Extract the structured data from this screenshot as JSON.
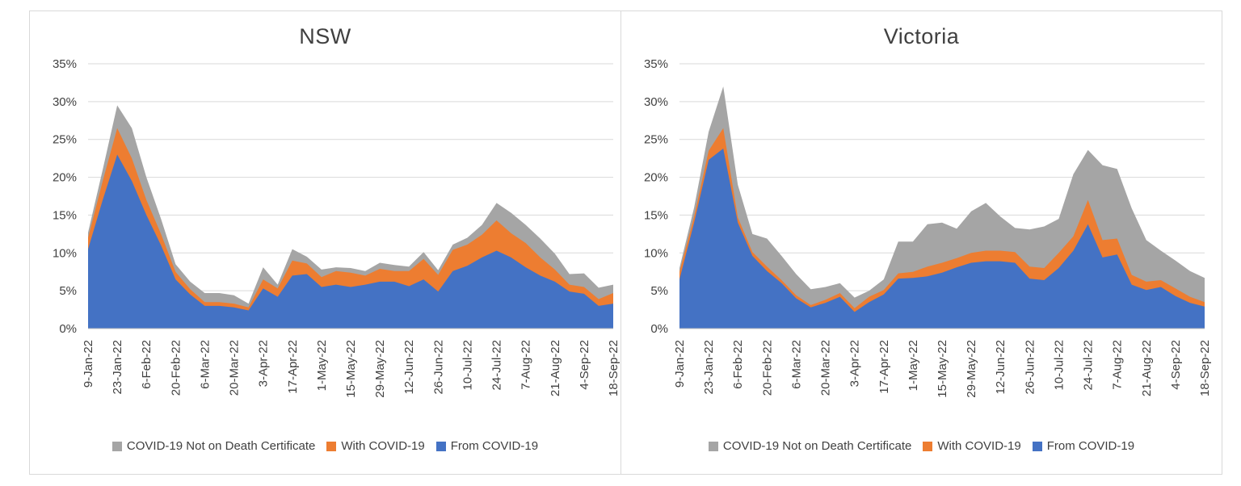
{
  "figure": {
    "background_color": "#ffffff",
    "panel_border_color": "#d9d9d9",
    "gridline_color": "#d9d9d9",
    "axis_line_color": "#c0c0c0",
    "text_color": "#404040"
  },
  "chart_data": [
    {
      "type": "area",
      "stacked": true,
      "title": "NSW",
      "grid": true,
      "legend_position": "bottom",
      "ylim": [
        0,
        35
      ],
      "y_ticks": [
        "0%",
        "5%",
        "10%",
        "15%",
        "20%",
        "25%",
        "30%",
        "35%"
      ],
      "x": [
        "9-Jan-22",
        "16-Jan-22",
        "23-Jan-22",
        "30-Jan-22",
        "6-Feb-22",
        "13-Feb-22",
        "20-Feb-22",
        "27-Feb-22",
        "6-Mar-22",
        "13-Mar-22",
        "20-Mar-22",
        "27-Mar-22",
        "3-Apr-22",
        "10-Apr-22",
        "17-Apr-22",
        "24-Apr-22",
        "1-May-22",
        "8-May-22",
        "15-May-22",
        "22-May-22",
        "29-May-22",
        "5-Jun-22",
        "12-Jun-22",
        "19-Jun-22",
        "26-Jun-22",
        "3-Jul-22",
        "10-Jul-22",
        "17-Jul-22",
        "24-Jul-22",
        "31-Jul-22",
        "7-Aug-22",
        "14-Aug-22",
        "21-Aug-22",
        "28-Aug-22",
        "4-Sep-22",
        "11-Sep-22",
        "18-Sep-22"
      ],
      "x_tick_labels": [
        "9-Jan-22",
        "23-Jan-22",
        "6-Feb-22",
        "20-Feb-22",
        "6-Mar-22",
        "20-Mar-22",
        "3-Apr-22",
        "17-Apr-22",
        "1-May-22",
        "15-May-22",
        "29-May-22",
        "12-Jun-22",
        "26-Jun-22",
        "10-Jul-22",
        "24-Jul-22",
        "7-Aug-22",
        "21-Aug-22",
        "4-Sep-22",
        "18-Sep-22"
      ],
      "x_tick_every": 2,
      "unit": "percent",
      "series": [
        {
          "name": "From COVID-19",
          "color": "#4472C4",
          "values": [
            10.5,
            17,
            23,
            19.5,
            15,
            11,
            6.5,
            4.5,
            3,
            3,
            2.8,
            2.4,
            5.3,
            4.2,
            7,
            7.2,
            5.5,
            5.8,
            5.5,
            5.8,
            6.2,
            6.2,
            5.6,
            6.5,
            4.9,
            7.6,
            8.3,
            9.4,
            10.3,
            9.4,
            8.1,
            7,
            6.2,
            4.9,
            4.6,
            3,
            3.3
          ]
        },
        {
          "name": "With COVID-19",
          "color": "#ED7D31",
          "values": [
            1.5,
            2.5,
            3.5,
            3,
            2,
            1.5,
            1,
            0.7,
            0.5,
            0.5,
            0.5,
            0.4,
            1.2,
            1.1,
            2,
            1.4,
            1.3,
            1.8,
            1.9,
            1.2,
            1.7,
            1.4,
            2,
            2.7,
            2.2,
            2.8,
            2.8,
            3,
            4,
            3.2,
            3.2,
            2.4,
            1.6,
            0.9,
            0.9,
            0.9,
            1.4
          ]
        },
        {
          "name": "COVID-19 Not on Death Certificate",
          "color": "#A5A5A5",
          "values": [
            0.7,
            1.5,
            3,
            4,
            3,
            2,
            1,
            1,
            1.2,
            1.2,
            1.1,
            0.5,
            1.6,
            0.5,
            1.5,
            0.9,
            1,
            0.5,
            0.6,
            0.6,
            0.8,
            0.8,
            0.6,
            0.9,
            0.6,
            0.7,
            0.9,
            1.3,
            2.3,
            2.7,
            2.4,
            2.5,
            2.1,
            1.4,
            1.8,
            1.5,
            1.1
          ]
        }
      ],
      "legend_order": [
        2,
        1,
        0
      ]
    },
    {
      "type": "area",
      "stacked": true,
      "title": "Victoria",
      "grid": true,
      "legend_position": "bottom",
      "ylim": [
        0,
        35
      ],
      "y_ticks": [
        "0%",
        "5%",
        "10%",
        "15%",
        "20%",
        "25%",
        "30%",
        "35%"
      ],
      "x": [
        "9-Jan-22",
        "16-Jan-22",
        "23-Jan-22",
        "30-Jan-22",
        "6-Feb-22",
        "13-Feb-22",
        "20-Feb-22",
        "27-Feb-22",
        "6-Mar-22",
        "13-Mar-22",
        "20-Mar-22",
        "27-Mar-22",
        "3-Apr-22",
        "10-Apr-22",
        "17-Apr-22",
        "24-Apr-22",
        "1-May-22",
        "8-May-22",
        "15-May-22",
        "22-May-22",
        "29-May-22",
        "5-Jun-22",
        "12-Jun-22",
        "19-Jun-22",
        "26-Jun-22",
        "3-Jul-22",
        "10-Jul-22",
        "17-Jul-22",
        "24-Jul-22",
        "31-Jul-22",
        "7-Aug-22",
        "14-Aug-22",
        "21-Aug-22",
        "28-Aug-22",
        "4-Sep-22",
        "11-Sep-22",
        "18-Sep-22"
      ],
      "x_tick_labels": [
        "9-Jan-22",
        "23-Jan-22",
        "6-Feb-22",
        "20-Feb-22",
        "6-Mar-22",
        "20-Mar-22",
        "3-Apr-22",
        "17-Apr-22",
        "1-May-22",
        "15-May-22",
        "29-May-22",
        "12-Jun-22",
        "26-Jun-22",
        "10-Jul-22",
        "24-Jul-22",
        "7-Aug-22",
        "21-Aug-22",
        "4-Sep-22",
        "18-Sep-22"
      ],
      "x_tick_every": 2,
      "unit": "percent",
      "series": [
        {
          "name": "From COVID-19",
          "color": "#4472C4",
          "values": [
            6.5,
            14,
            22.3,
            23.8,
            14,
            9.6,
            7.6,
            6,
            4,
            2.8,
            3.4,
            4.2,
            2.2,
            3.5,
            4.5,
            6.6,
            6.7,
            6.9,
            7.4,
            8.1,
            8.7,
            8.9,
            8.9,
            8.7,
            6.6,
            6.4,
            8,
            10.3,
            13.8,
            9.4,
            9.8,
            5.8,
            5.1,
            5.5,
            4.3,
            3.4,
            2.9
          ]
        },
        {
          "name": "With COVID-19",
          "color": "#ED7D31",
          "values": [
            1,
            0.8,
            1.2,
            2.7,
            0.7,
            0.5,
            0.6,
            0.4,
            0.4,
            0.3,
            0.4,
            0.5,
            0.5,
            0.7,
            0.6,
            0.7,
            0.8,
            1.3,
            1.3,
            1.2,
            1.3,
            1.4,
            1.4,
            1.4,
            1.6,
            1.6,
            2,
            1.9,
            3.2,
            2.3,
            2.1,
            1.3,
            1.1,
            0.9,
            1,
            0.8,
            0.6
          ]
        },
        {
          "name": "COVID-19 Not on Death Certificate",
          "color": "#A5A5A5",
          "values": [
            0.5,
            1.2,
            2.5,
            5.5,
            4.3,
            2.4,
            3.7,
            3.2,
            2.8,
            2.1,
            1.7,
            1.3,
            1.4,
            0.8,
            1.4,
            4.2,
            4,
            5.6,
            5.3,
            3.9,
            5.5,
            6.3,
            4.5,
            3.2,
            4.9,
            5.5,
            4.5,
            8.2,
            6.6,
            9.9,
            9.2,
            8.8,
            5.5,
            3.9,
            3.7,
            3.4,
            3.2
          ]
        }
      ],
      "legend_order": [
        2,
        1,
        0
      ]
    }
  ]
}
